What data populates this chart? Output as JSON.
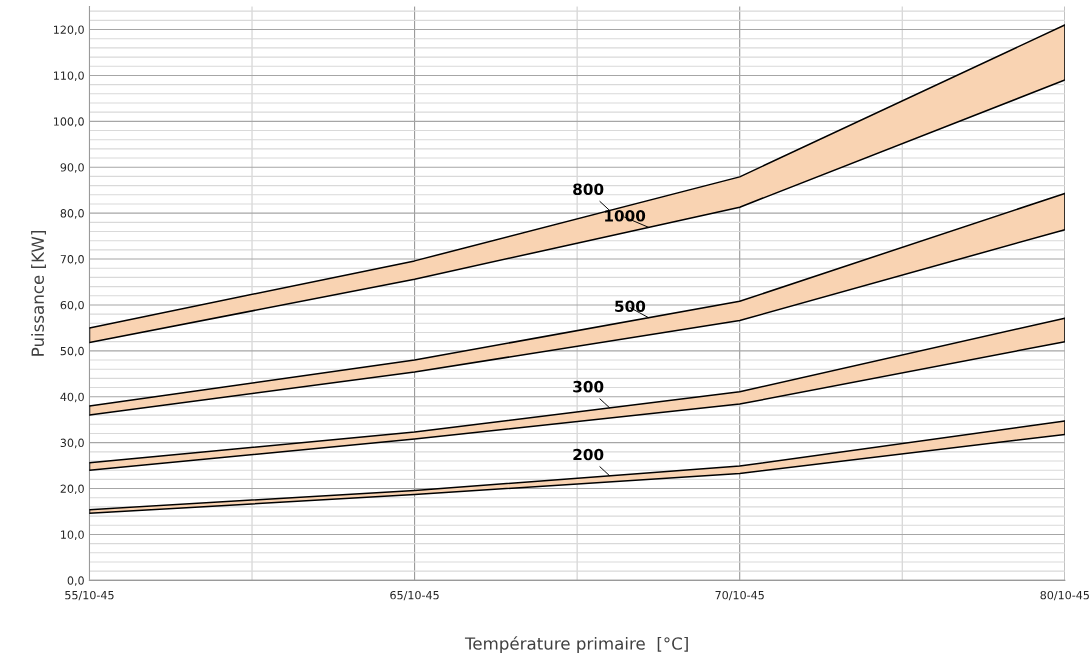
{
  "chart_data": {
    "type": "line",
    "xlabel": "Température primaire  [°C]",
    "ylabel": "Puissance [KW]",
    "categories": [
      "55/10-45",
      "65/10-45",
      "70/10-45",
      "80/10-45"
    ],
    "ylim": [
      0,
      125
    ],
    "yticks": [
      {
        "value": 0,
        "label": "0,0"
      },
      {
        "value": 2,
        "label": null
      },
      {
        "value": 4,
        "label": null
      },
      {
        "value": 6,
        "label": null
      },
      {
        "value": 8,
        "label": null
      },
      {
        "value": 10,
        "label": "10,0"
      },
      {
        "value": 12,
        "label": null
      },
      {
        "value": 14,
        "label": null
      },
      {
        "value": 16,
        "label": null
      },
      {
        "value": 18,
        "label": null
      },
      {
        "value": 20,
        "label": "20,0"
      },
      {
        "value": 22,
        "label": null
      },
      {
        "value": 24,
        "label": null
      },
      {
        "value": 26,
        "label": null
      },
      {
        "value": 28,
        "label": null
      },
      {
        "value": 30,
        "label": "30,0"
      },
      {
        "value": 32,
        "label": null
      },
      {
        "value": 34,
        "label": null
      },
      {
        "value": 36,
        "label": null
      },
      {
        "value": 38,
        "label": null
      },
      {
        "value": 40,
        "label": "40,0"
      },
      {
        "value": 42,
        "label": null
      },
      {
        "value": 44,
        "label": null
      },
      {
        "value": 46,
        "label": null
      },
      {
        "value": 48,
        "label": null
      },
      {
        "value": 50,
        "label": "50,0"
      },
      {
        "value": 52,
        "label": null
      },
      {
        "value": 54,
        "label": null
      },
      {
        "value": 56,
        "label": null
      },
      {
        "value": 58,
        "label": null
      },
      {
        "value": 60,
        "label": "60,0"
      },
      {
        "value": 62,
        "label": null
      },
      {
        "value": 64,
        "label": null
      },
      {
        "value": 66,
        "label": null
      },
      {
        "value": 68,
        "label": null
      },
      {
        "value": 70,
        "label": "70,0"
      },
      {
        "value": 72,
        "label": null
      },
      {
        "value": 74,
        "label": null
      },
      {
        "value": 76,
        "label": null
      },
      {
        "value": 78,
        "label": null
      },
      {
        "value": 80,
        "label": "80,0"
      },
      {
        "value": 82,
        "label": null
      },
      {
        "value": 84,
        "label": null
      },
      {
        "value": 86,
        "label": null
      },
      {
        "value": 88,
        "label": null
      },
      {
        "value": 90,
        "label": "90,0"
      },
      {
        "value": 92,
        "label": null
      },
      {
        "value": 94,
        "label": null
      },
      {
        "value": 96,
        "label": null
      },
      {
        "value": 98,
        "label": null
      },
      {
        "value": 100,
        "label": "100,0"
      },
      {
        "value": 102,
        "label": null
      },
      {
        "value": 104,
        "label": null
      },
      {
        "value": 106,
        "label": null
      },
      {
        "value": 108,
        "label": null
      },
      {
        "value": 110,
        "label": "110,0"
      },
      {
        "value": 112,
        "label": null
      },
      {
        "value": 114,
        "label": null
      },
      {
        "value": 116,
        "label": null
      },
      {
        "value": 118,
        "label": null
      },
      {
        "value": 120,
        "label": "120,0"
      },
      {
        "value": 122,
        "label": null
      },
      {
        "value": 124,
        "label": null
      }
    ],
    "grid": true,
    "series": [
      {
        "color": "#000000",
        "values": [
          14.6,
          18.7,
          23.3,
          31.8
        ]
      },
      {
        "name": "200",
        "color": "#000000",
        "values": [
          15.4,
          19.6,
          24.9,
          34.7
        ],
        "lower": [
          14.6,
          18.7,
          23.3,
          31.8
        ],
        "upper": [
          15.4,
          19.6,
          24.9,
          34.7
        ]
      },
      {
        "color": "#000000",
        "values": [
          24.0,
          30.8,
          38.4,
          52.0
        ]
      },
      {
        "name": "300",
        "color": "#000000",
        "values": [
          25.6,
          32.3,
          41.1,
          57.1
        ],
        "lower": [
          24.0,
          30.8,
          38.4,
          52.0
        ],
        "upper": [
          25.6,
          32.3,
          41.1,
          57.1
        ]
      },
      {
        "color": "#000000",
        "values": [
          36.0,
          45.4,
          56.6,
          76.4
        ]
      },
      {
        "name": "500",
        "color": "#000000",
        "values": [
          38.0,
          48.0,
          60.8,
          84.3
        ],
        "lower": [
          36.0,
          45.4,
          56.6,
          76.4
        ],
        "upper": [
          38.0,
          48.0,
          60.8,
          84.3
        ]
      },
      {
        "name": "1000",
        "color": "#000000",
        "values": [
          51.8,
          65.6,
          81.3,
          109.0
        ]
      },
      {
        "name": "800",
        "color": "#000000",
        "values": [
          55.0,
          69.6,
          87.9,
          121.0
        ],
        "lower": [
          51.8,
          65.6,
          81.3,
          109.0
        ],
        "upper": [
          55.0,
          69.6,
          87.9,
          121.0
        ]
      }
    ]
  }
}
